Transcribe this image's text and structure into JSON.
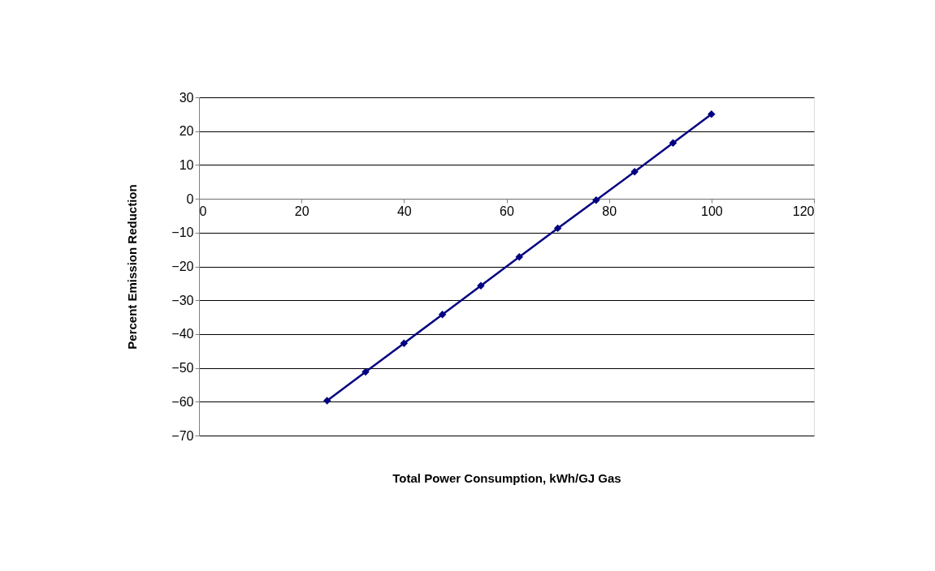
{
  "chart_data": {
    "type": "line",
    "xlabel": "Total Power Consumption,  kWh/GJ Gas",
    "ylabel": "Percent  Emission  Reduction",
    "x": [
      25,
      32.5,
      40,
      47.5,
      55,
      62.5,
      70,
      77.5,
      85,
      92.5,
      100
    ],
    "series": [
      {
        "color": "#000080",
        "values": [
          -59.7,
          -51.2,
          -42.7,
          -34.2,
          -25.7,
          -17.2,
          -8.7,
          -0.4,
          8.0,
          16.5,
          25.0
        ]
      }
    ],
    "xlim": [
      0,
      120
    ],
    "xticks": [
      0,
      20,
      40,
      60,
      80,
      100,
      120
    ],
    "ylim": [
      -70,
      30
    ],
    "yticks": [
      -70,
      -60,
      -50,
      -40,
      -30,
      -20,
      -10,
      0,
      10,
      20,
      30
    ],
    "grid": "y",
    "marker": "diamond",
    "line_style": "solid"
  }
}
